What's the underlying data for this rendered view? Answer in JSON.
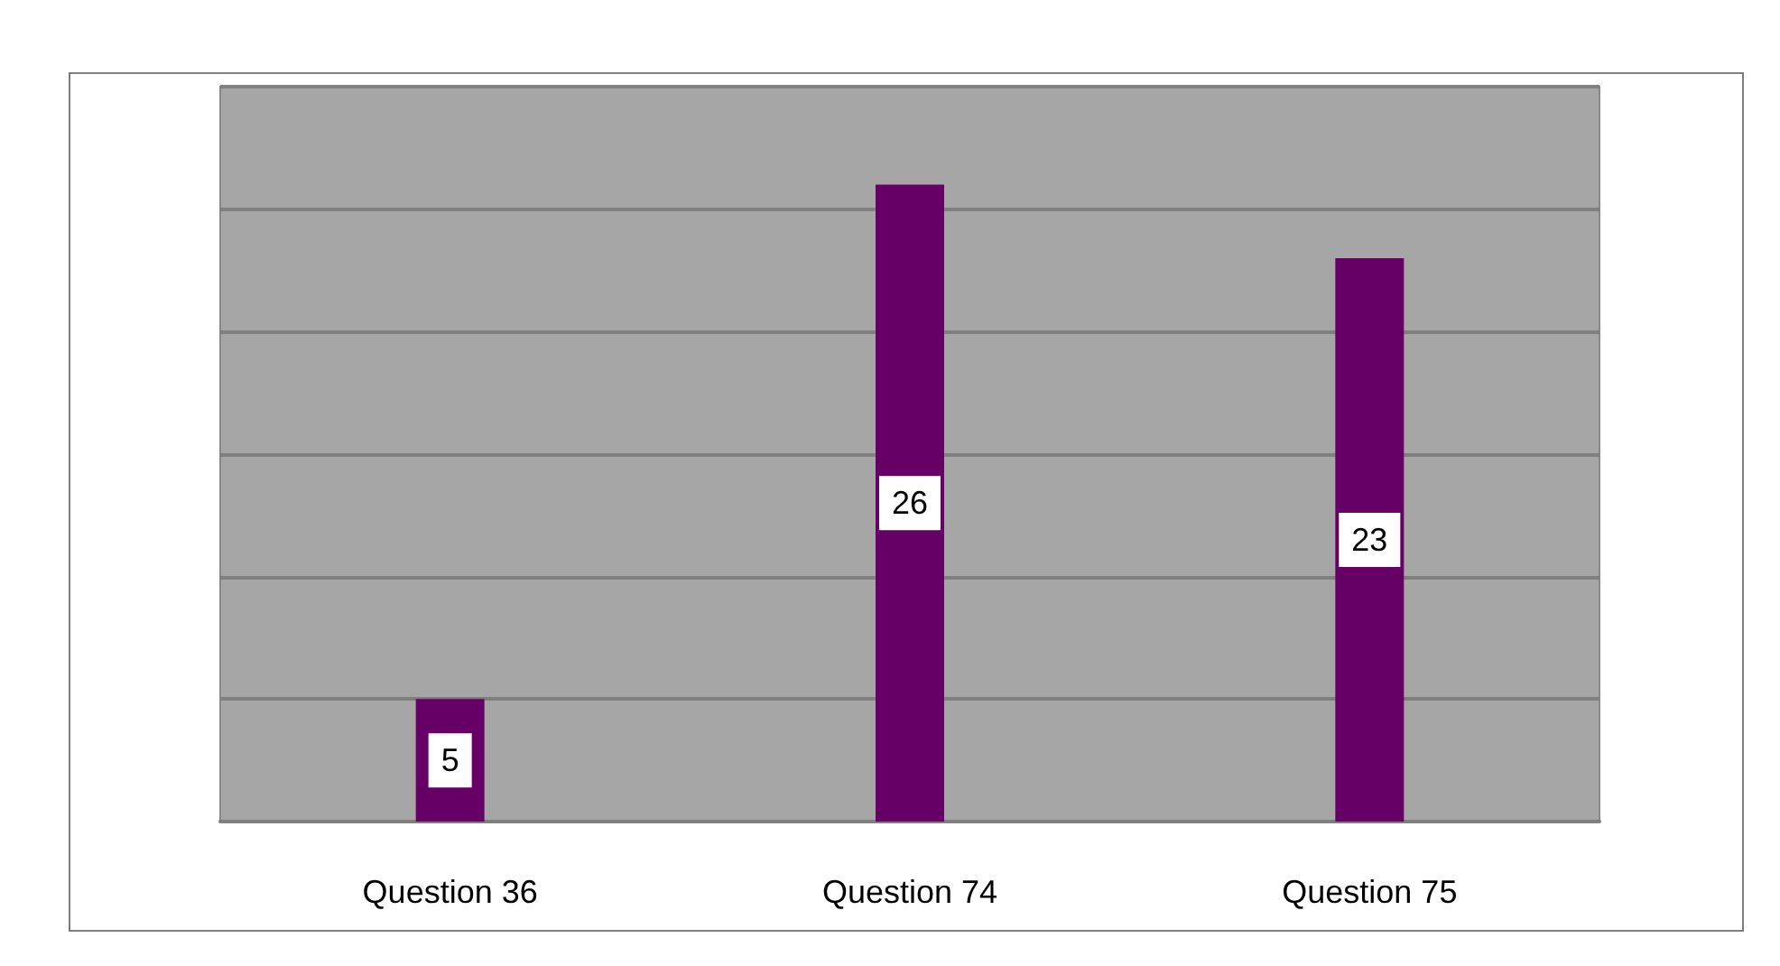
{
  "chart_data": {
    "type": "bar",
    "categories": [
      "Question 36",
      "Question 74",
      "Question 75"
    ],
    "values": [
      5,
      26,
      23
    ],
    "color": "#660066",
    "ylim": [
      0,
      30
    ],
    "yticks": [
      {
        "value": 0,
        "label": null
      },
      {
        "value": 5,
        "label": null
      },
      {
        "value": 10,
        "label": null
      },
      {
        "value": 15,
        "label": null
      },
      {
        "value": 20,
        "label": null
      },
      {
        "value": 25,
        "label": null
      },
      {
        "value": 30,
        "label": null
      }
    ],
    "tick_labels": "x",
    "grid": "y",
    "data_labels": true
  }
}
